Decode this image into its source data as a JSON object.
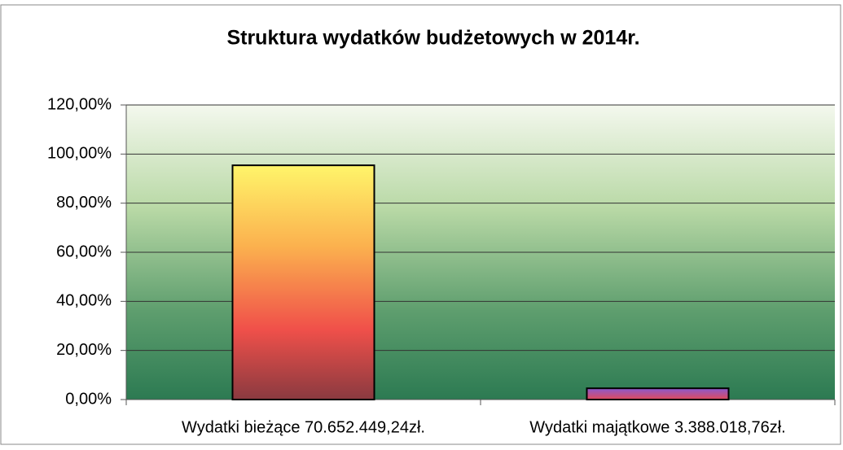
{
  "chart_data": {
    "type": "bar",
    "title": "Struktura wydatków budżetowych w 2014r.",
    "categories": [
      "Wydatki bieżące 70.652.449,24zł.",
      "Wydatki majątkowe 3.388.018,76zł."
    ],
    "values": [
      95.42,
      4.58
    ],
    "ylim": [
      0,
      120
    ],
    "yticks": [
      {
        "value": 0,
        "label": "0,00%"
      },
      {
        "value": 20,
        "label": "20,00%"
      },
      {
        "value": 40,
        "label": "40,00%"
      },
      {
        "value": 60,
        "label": "60,00%"
      },
      {
        "value": 80,
        "label": "80,00%"
      },
      {
        "value": 100,
        "label": "100,00%"
      },
      {
        "value": 120,
        "label": "120,00%"
      }
    ],
    "grid": true
  }
}
